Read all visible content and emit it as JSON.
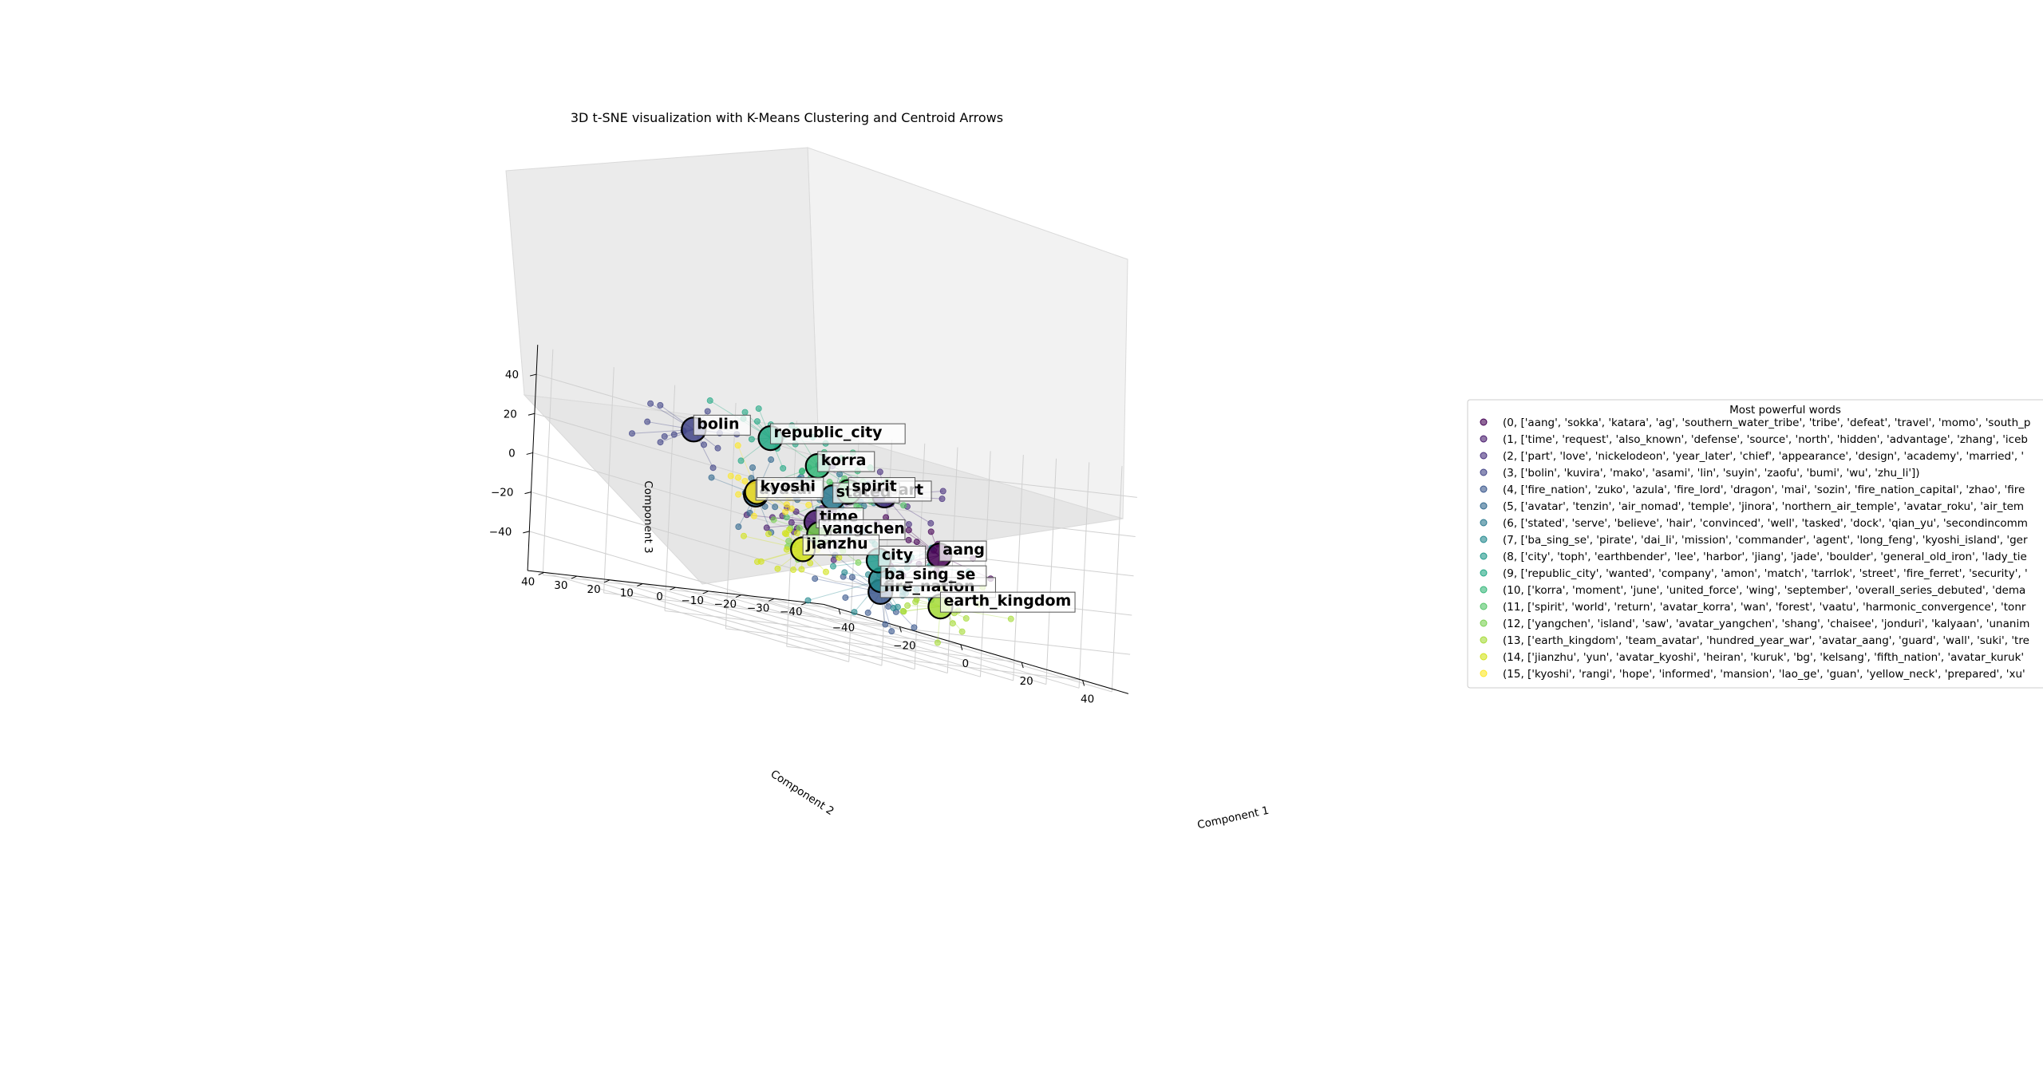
{
  "chart_data": {
    "type": "scatter",
    "title": "3D t-SNE visualization with K-Means Clustering and Centroid Arrows",
    "xlabel": "Component 1",
    "ylabel": "Component 2",
    "zlabel": "Component 3",
    "xlim": [
      -45,
      55
    ],
    "ylim": [
      -45,
      45
    ],
    "zlim": [
      -60,
      55
    ],
    "x_ticks": [
      -40,
      -20,
      0,
      20,
      40
    ],
    "y_ticks": [
      -40,
      -30,
      -20,
      -10,
      0,
      10,
      20,
      30,
      40
    ],
    "z_ticks": [
      -40,
      -20,
      0,
      20,
      40
    ],
    "x_tick_labels": [
      "−40",
      "−20",
      "0",
      "20",
      "40"
    ],
    "y_tick_labels": [
      "−40",
      "−30",
      "−20",
      "−10",
      "0",
      "10",
      "20",
      "30",
      "40"
    ],
    "z_tick_labels": [
      "−40",
      "−20",
      "0",
      "20",
      "40"
    ],
    "grid": true,
    "colormap": "viridis",
    "legend": {
      "title": "Most powerful words",
      "placement": "center-right",
      "entries": [
        "(0, ['aang', 'sokka', 'katara', 'ag', 'southern_water_tribe', 'tribe', 'defeat', 'travel', 'momo', 'south_p",
        "(1, ['time', 'request', 'also_known', 'defense', 'source', 'north', 'hidden', 'advantage', 'zhang', 'iceb",
        "(2, ['part', 'love', 'nickelodeon', 'year_later', 'chief', 'appearance', 'design', 'academy', 'married', '",
        "(3, ['bolin', 'kuvira', 'mako', 'asami', 'lin', 'suyin', 'zaofu', 'bumi', 'wu', 'zhu_li'])",
        "(4, ['fire_nation', 'zuko', 'azula', 'fire_lord', 'dragon', 'mai', 'sozin', 'fire_nation_capital', 'zhao', 'fire",
        "(5, ['avatar', 'tenzin', 'air_nomad', 'temple', 'jinora', 'northern_air_temple', 'avatar_roku', 'air_tem",
        "(6, ['stated', 'serve', 'believe', 'hair', 'convinced', 'well', 'tasked', 'dock', 'qian_yu', 'secondincomm",
        "(7, ['ba_sing_se', 'pirate', 'dai_li', 'mission', 'commander', 'agent', 'long_feng', 'kyoshi_island', 'ger",
        "(8, ['city', 'toph', 'earthbender', 'lee', 'harbor', 'jiang', 'jade', 'boulder', 'general_old_iron', 'lady_tie",
        "(9, ['republic_city', 'wanted', 'company', 'amon', 'match', 'tarrlok', 'street', 'fire_ferret', 'security', '",
        "(10, ['korra', 'moment', 'june', 'united_force', 'wing', 'september', 'overall_series_debuted', 'dema",
        "(11, ['spirit', 'world', 'return', 'avatar_korra', 'wan', 'forest', 'vaatu', 'harmonic_convergence', 'tonr",
        "(12, ['yangchen', 'island', 'saw', 'avatar_yangchen', 'shang', 'chaisee', 'jonduri', 'kalyaan', 'unanim",
        "(13, ['earth_kingdom', 'team_avatar', 'hundred_year_war', 'avatar_aang', 'guard', 'wall', 'suki', 'tre",
        "(14, ['jianzhu', 'yun', 'avatar_kyoshi', 'heiran', 'kuruk', 'bg', 'kelsang', 'fifth_nation', 'avatar_kuruk'",
        "(15, ['kyoshi', 'rangi', 'hope', 'informed', 'mansion', 'lao_ge', 'guan', 'yellow_neck', 'prepared', 'xu'"
      ]
    },
    "series": [
      {
        "cluster": 0,
        "color": "#440154",
        "centroid_label": "aang",
        "centroid": [
          40,
          0,
          -5
        ]
      },
      {
        "cluster": 1,
        "color": "#481a6c",
        "centroid_label": "time",
        "centroid": [
          5,
          5,
          -5
        ]
      },
      {
        "cluster": 2,
        "color": "#472f7d",
        "centroid_label": "part",
        "centroid": [
          32,
          10,
          20
        ]
      },
      {
        "cluster": 3,
        "color": "#414487",
        "centroid_label": "bolin",
        "centroid": [
          -20,
          20,
          28
        ]
      },
      {
        "cluster": 4,
        "color": "#39568c",
        "centroid_label": "fire_nation",
        "centroid": [
          0,
          -20,
          -38
        ]
      },
      {
        "cluster": 5,
        "color": "#31688e",
        "centroid_label": "avatar",
        "centroid": [
          -15,
          5,
          0
        ]
      },
      {
        "cluster": 6,
        "color": "#2a788e",
        "centroid_label": "stated",
        "centroid": [
          10,
          5,
          10
        ]
      },
      {
        "cluster": 7,
        "color": "#23888e",
        "centroid_label": "ba_sing_se",
        "centroid": [
          0,
          -20,
          -32
        ]
      },
      {
        "cluster": 8,
        "color": "#1f988b",
        "centroid_label": "city",
        "centroid": [
          15,
          -5,
          -18
        ]
      },
      {
        "cluster": 9,
        "color": "#22a884",
        "centroid_label": "republic_city",
        "centroid": [
          5,
          20,
          35
        ]
      },
      {
        "cluster": 10,
        "color": "#35b779",
        "centroid_label": "korra",
        "centroid": [
          10,
          10,
          25
        ]
      },
      {
        "cluster": 11,
        "color": "#54c568",
        "centroid_label": "spirit",
        "centroid": [
          15,
          5,
          15
        ]
      },
      {
        "cluster": 12,
        "color": "#7ad151",
        "centroid_label": "yangchen",
        "centroid": [
          -10,
          -10,
          -15
        ]
      },
      {
        "cluster": 13,
        "color": "#a5db36",
        "centroid_label": "earth_kingdom",
        "centroid": [
          25,
          -15,
          -35
        ]
      },
      {
        "cluster": 14,
        "color": "#d2e21b",
        "centroid_label": "jianzhu",
        "centroid": [
          -15,
          -10,
          -25
        ]
      },
      {
        "cluster": 15,
        "color": "#fde725",
        "centroid_label": "kyoshi",
        "centroid": [
          -20,
          0,
          0
        ]
      }
    ]
  }
}
